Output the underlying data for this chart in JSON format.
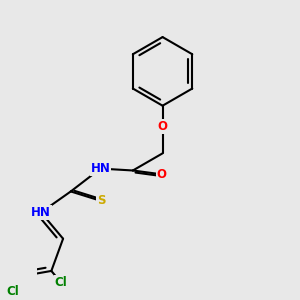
{
  "background_color": "#e8e8e8",
  "bond_color": "#000000",
  "bond_width": 1.5,
  "atom_colors": {
    "O": "#ff0000",
    "N": "#0000ff",
    "S": "#ccaa00",
    "Cl": "#008000",
    "H_color": "#4a9090",
    "C": "#000000"
  },
  "font_size": 8.5,
  "title": ""
}
